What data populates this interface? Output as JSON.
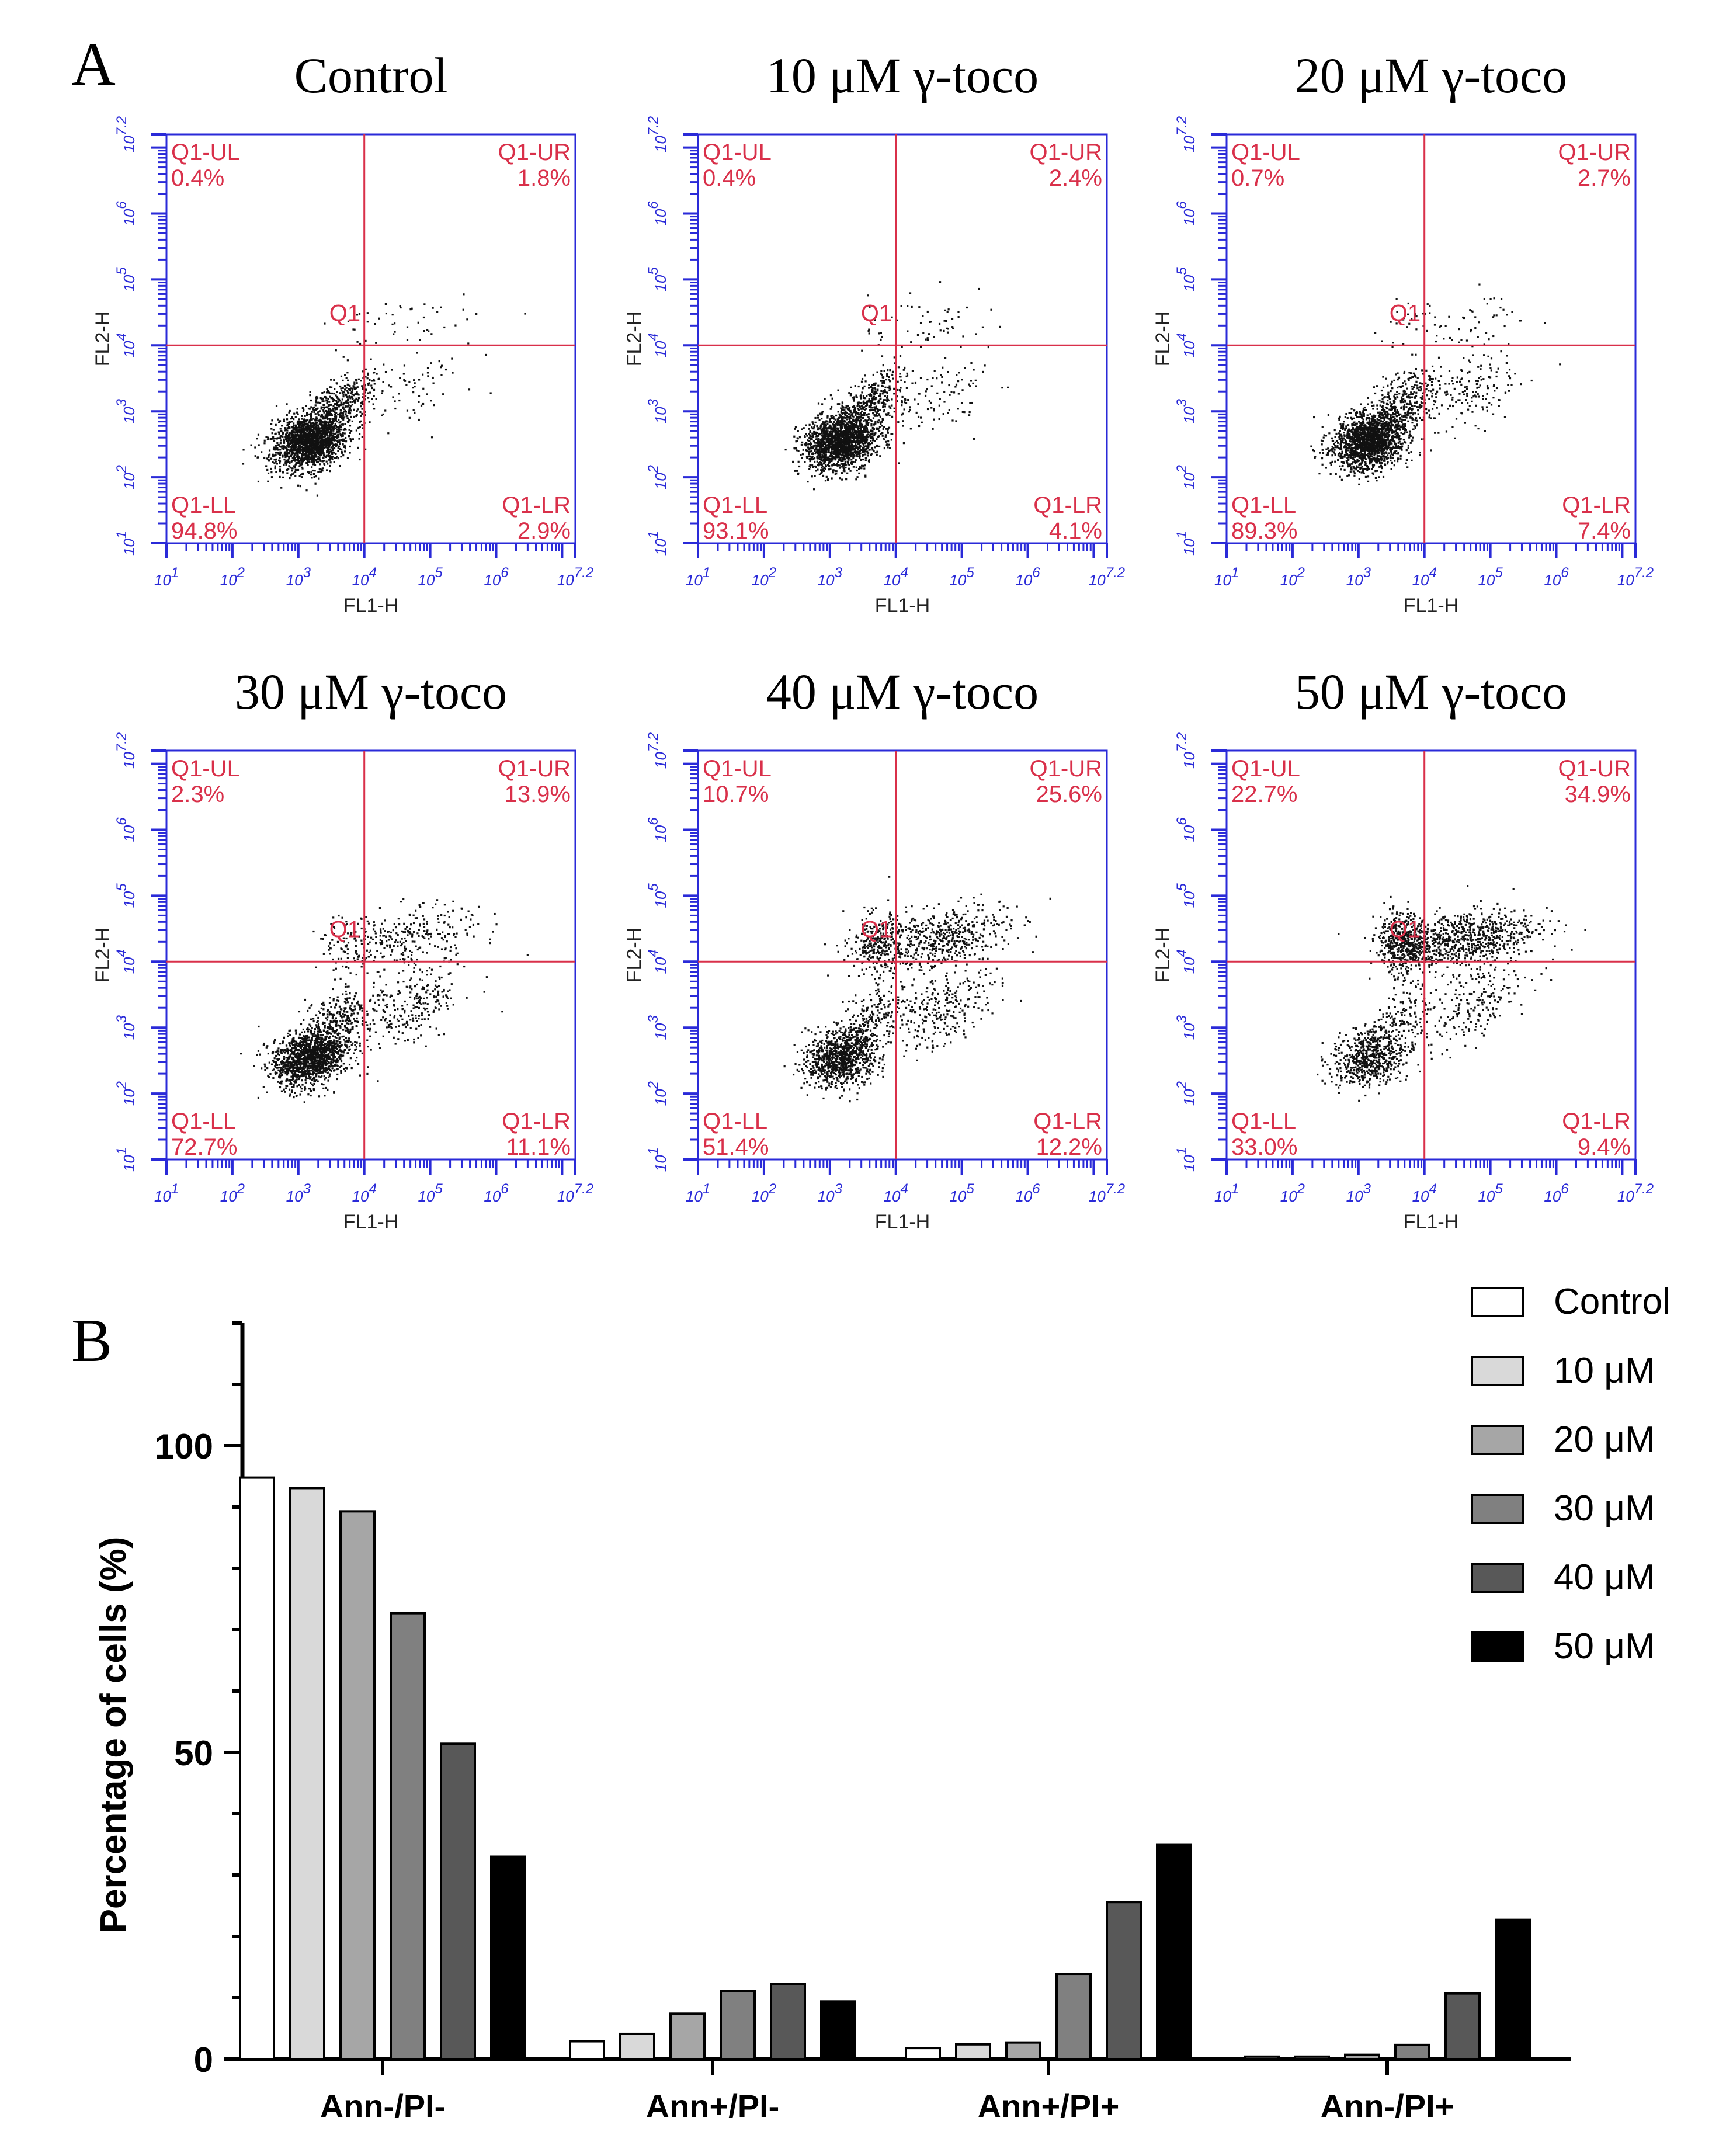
{
  "panel_labels": {
    "a": "A",
    "b": "B"
  },
  "colors": {
    "axis_blue": "#2a2ad8",
    "gate_red": "#d9304a",
    "dot": "#111111",
    "bar_outline": "#000000"
  },
  "flow_axes": {
    "xlabel": "FL1-H",
    "ylabel": "FL2-H",
    "ticks": [
      {
        "base": "10",
        "exp": "1"
      },
      {
        "base": "10",
        "exp": "2"
      },
      {
        "base": "10",
        "exp": "3"
      },
      {
        "base": "10",
        "exp": "4"
      },
      {
        "base": "10",
        "exp": "5"
      },
      {
        "base": "10",
        "exp": "6"
      },
      {
        "base": "10",
        "exp": "7.2"
      }
    ],
    "gate_name": "Q1",
    "quadrant_names": {
      "ul": "Q1-UL",
      "ur": "Q1-UR",
      "ll": "Q1-LL",
      "lr": "Q1-LR"
    },
    "gate_x_log": 4,
    "gate_y_log": 4,
    "log_range": [
      1,
      7.2
    ]
  },
  "chart_data": [
    {
      "type": "scatter",
      "title": "Control",
      "xlabel": "FL1-H",
      "ylabel": "FL2-H",
      "xlim": [
        1,
        7.2
      ],
      "ylim": [
        1,
        7.2
      ],
      "quadrants": {
        "ul": "0.4%",
        "ur": "1.8%",
        "ll": "94.8%",
        "lr": "2.9%"
      }
    },
    {
      "type": "scatter",
      "title": "10 μM γ-toco",
      "xlabel": "FL1-H",
      "ylabel": "FL2-H",
      "xlim": [
        1,
        7.2
      ],
      "ylim": [
        1,
        7.2
      ],
      "quadrants": {
        "ul": "0.4%",
        "ur": "2.4%",
        "ll": "93.1%",
        "lr": "4.1%"
      }
    },
    {
      "type": "scatter",
      "title": "20 μM γ-toco",
      "xlabel": "FL1-H",
      "ylabel": "FL2-H",
      "xlim": [
        1,
        7.2
      ],
      "ylim": [
        1,
        7.2
      ],
      "quadrants": {
        "ul": "0.7%",
        "ur": "2.7%",
        "ll": "89.3%",
        "lr": "7.4%"
      }
    },
    {
      "type": "scatter",
      "title": "30 μM γ-toco",
      "xlabel": "FL1-H",
      "ylabel": "FL2-H",
      "xlim": [
        1,
        7.2
      ],
      "ylim": [
        1,
        7.2
      ],
      "quadrants": {
        "ul": "2.3%",
        "ur": "13.9%",
        "ll": "72.7%",
        "lr": "11.1%"
      }
    },
    {
      "type": "scatter",
      "title": "40 μM γ-toco",
      "xlabel": "FL1-H",
      "ylabel": "FL2-H",
      "xlim": [
        1,
        7.2
      ],
      "ylim": [
        1,
        7.2
      ],
      "quadrants": {
        "ul": "10.7%",
        "ur": "25.6%",
        "ll": "51.4%",
        "lr": "12.2%"
      }
    },
    {
      "type": "scatter",
      "title": "50 μM γ-toco",
      "xlabel": "FL1-H",
      "ylabel": "FL2-H",
      "xlim": [
        1,
        7.2
      ],
      "ylim": [
        1,
        7.2
      ],
      "quadrants": {
        "ul": "22.7%",
        "ur": "34.9%",
        "ll": "33.0%",
        "lr": "9.4%"
      }
    },
    {
      "type": "bar",
      "title": "",
      "xlabel": "",
      "ylabel": "Percentage of cells (%)",
      "ylim": [
        0,
        120
      ],
      "yticks": [
        0,
        50,
        100
      ],
      "categories": [
        "Ann-/PI-",
        "Ann+/PI-",
        "Ann+/PI+",
        "Ann-/PI+"
      ],
      "legend_position": "top-right",
      "series": [
        {
          "name": "Control",
          "color": "#ffffff",
          "values": [
            94.8,
            2.9,
            1.8,
            0.4
          ]
        },
        {
          "name": "10 μM",
          "color": "#d9d9d9",
          "values": [
            93.1,
            4.1,
            2.4,
            0.4
          ]
        },
        {
          "name": "20 μM",
          "color": "#a6a6a6",
          "values": [
            89.3,
            7.4,
            2.7,
            0.7
          ]
        },
        {
          "name": "30 μM",
          "color": "#808080",
          "values": [
            72.7,
            11.1,
            13.9,
            2.3
          ]
        },
        {
          "name": "40 μM",
          "color": "#585858",
          "values": [
            51.4,
            12.2,
            25.6,
            10.7
          ]
        },
        {
          "name": "50 μM",
          "color": "#000000",
          "values": [
            33.0,
            9.4,
            34.9,
            22.7
          ]
        }
      ]
    }
  ]
}
